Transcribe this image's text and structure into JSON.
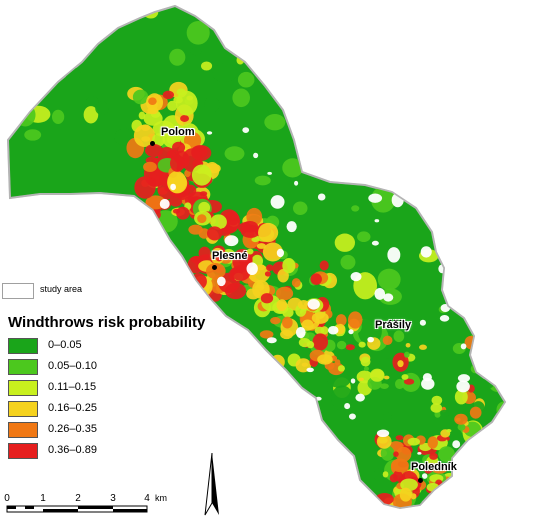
{
  "legend": {
    "study_area_label": "study area",
    "title": "Windthrows risk probability",
    "classes": [
      {
        "label": "0–0.05",
        "color": "#1aa51a"
      },
      {
        "label": "0.05–0.10",
        "color": "#4cc81e"
      },
      {
        "label": "0.11–0.15",
        "color": "#c8f01e"
      },
      {
        "label": "0.16–0.25",
        "color": "#f5d21e"
      },
      {
        "label": "0.26–0.35",
        "color": "#f07814"
      },
      {
        "label": "0.36–0.89",
        "color": "#e61e1e"
      }
    ]
  },
  "places": [
    {
      "name": "Polom"
    },
    {
      "name": "Plesné"
    },
    {
      "name": "Prášily"
    },
    {
      "name": "Poledník"
    }
  ],
  "scalebar": {
    "ticks": [
      "0",
      "1",
      "2",
      "3",
      "4"
    ],
    "unit": "km"
  },
  "colors": {
    "study_area_outline": "#b4b4b4",
    "background": "#ffffff"
  },
  "icons": [
    "north-arrow-icon"
  ]
}
